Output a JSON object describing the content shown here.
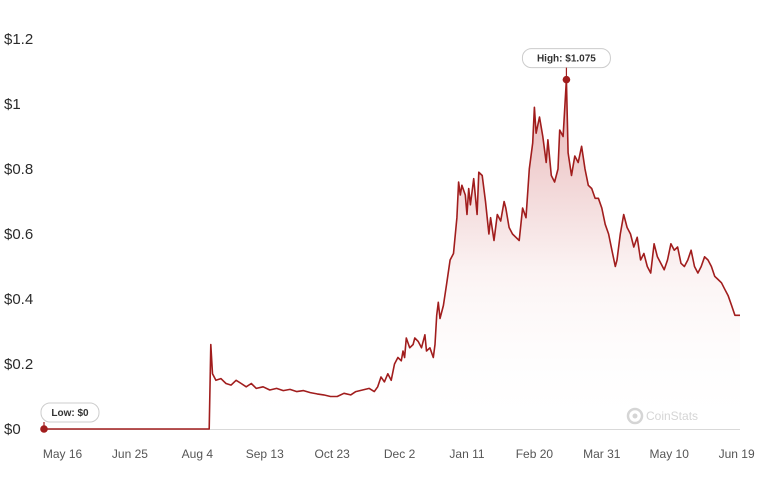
{
  "chart_data": {
    "type": "area",
    "title": "",
    "xlabel": "",
    "ylabel": "",
    "ylim": [
      0,
      1.2
    ],
    "y_ticks": [
      "$0",
      "$0.2",
      "$0.4",
      "$0.6",
      "$0.8",
      "$1",
      "$1.2"
    ],
    "y_tick_values": [
      0,
      0.2,
      0.4,
      0.6,
      0.8,
      1.0,
      1.2
    ],
    "x_range": [
      "2023-05-05",
      "2024-06-21"
    ],
    "x_ticks": [
      "May 16",
      "Jun 25",
      "Aug 4",
      "Sep 13",
      "Oct 23",
      "Dec 2",
      "Jan 11",
      "Feb 20",
      "Mar 31",
      "May 10",
      "Jun 19"
    ],
    "x_tick_dates": [
      "2023-05-16",
      "2023-06-25",
      "2023-08-04",
      "2023-09-13",
      "2023-10-23",
      "2023-12-02",
      "2024-01-11",
      "2024-02-20",
      "2024-03-31",
      "2024-05-10",
      "2024-06-19"
    ],
    "grid": false,
    "legend": "none",
    "colors": {
      "line": "#a11d1d",
      "fill_top": "#c0393b",
      "marker": "#a11d1d"
    },
    "annotations": {
      "high": {
        "label": "High: $1.075",
        "date": "2024-03-10",
        "value": 1.075
      },
      "low": {
        "label": "Low: $0",
        "date": "2023-05-05",
        "value": 0
      }
    },
    "series": [
      {
        "points": [
          [
            "2023-05-05",
            0.0
          ],
          [
            "2023-08-11",
            0.0
          ],
          [
            "2023-08-12",
            0.26
          ],
          [
            "2023-08-13",
            0.17
          ],
          [
            "2023-08-15",
            0.15
          ],
          [
            "2023-08-18",
            0.155
          ],
          [
            "2023-08-21",
            0.14
          ],
          [
            "2023-08-24",
            0.135
          ],
          [
            "2023-08-27",
            0.15
          ],
          [
            "2023-08-30",
            0.14
          ],
          [
            "2023-09-02",
            0.13
          ],
          [
            "2023-09-05",
            0.14
          ],
          [
            "2023-09-08",
            0.125
          ],
          [
            "2023-09-12",
            0.13
          ],
          [
            "2023-09-16",
            0.12
          ],
          [
            "2023-09-20",
            0.125
          ],
          [
            "2023-09-24",
            0.118
          ],
          [
            "2023-09-28",
            0.122
          ],
          [
            "2023-10-02",
            0.115
          ],
          [
            "2023-10-06",
            0.118
          ],
          [
            "2023-10-10",
            0.112
          ],
          [
            "2023-10-14",
            0.108
          ],
          [
            "2023-10-18",
            0.105
          ],
          [
            "2023-10-22",
            0.1
          ],
          [
            "2023-10-26",
            0.1
          ],
          [
            "2023-10-30",
            0.11
          ],
          [
            "2023-11-03",
            0.105
          ],
          [
            "2023-11-06",
            0.115
          ],
          [
            "2023-11-10",
            0.12
          ],
          [
            "2023-11-14",
            0.125
          ],
          [
            "2023-11-17",
            0.115
          ],
          [
            "2023-11-19",
            0.13
          ],
          [
            "2023-11-21",
            0.16
          ],
          [
            "2023-11-23",
            0.145
          ],
          [
            "2023-11-25",
            0.17
          ],
          [
            "2023-11-27",
            0.15
          ],
          [
            "2023-11-29",
            0.2
          ],
          [
            "2023-12-01",
            0.22
          ],
          [
            "2023-12-03",
            0.21
          ],
          [
            "2023-12-04",
            0.24
          ],
          [
            "2023-12-05",
            0.22
          ],
          [
            "2023-12-06",
            0.28
          ],
          [
            "2023-12-08",
            0.25
          ],
          [
            "2023-12-10",
            0.26
          ],
          [
            "2023-12-11",
            0.28
          ],
          [
            "2023-12-13",
            0.27
          ],
          [
            "2023-12-15",
            0.25
          ],
          [
            "2023-12-17",
            0.29
          ],
          [
            "2023-12-18",
            0.24
          ],
          [
            "2023-12-20",
            0.25
          ],
          [
            "2023-12-22",
            0.22
          ],
          [
            "2023-12-23",
            0.26
          ],
          [
            "2023-12-24",
            0.35
          ],
          [
            "2023-12-25",
            0.39
          ],
          [
            "2023-12-26",
            0.34
          ],
          [
            "2023-12-28",
            0.38
          ],
          [
            "2023-12-30",
            0.45
          ],
          [
            "2024-01-01",
            0.52
          ],
          [
            "2024-01-03",
            0.54
          ],
          [
            "2024-01-05",
            0.65
          ],
          [
            "2024-01-06",
            0.76
          ],
          [
            "2024-01-07",
            0.72
          ],
          [
            "2024-01-08",
            0.75
          ],
          [
            "2024-01-10",
            0.72
          ],
          [
            "2024-01-11",
            0.66
          ],
          [
            "2024-01-12",
            0.74
          ],
          [
            "2024-01-13",
            0.69
          ],
          [
            "2024-01-15",
            0.77
          ],
          [
            "2024-01-17",
            0.66
          ],
          [
            "2024-01-18",
            0.79
          ],
          [
            "2024-01-20",
            0.78
          ],
          [
            "2024-01-22",
            0.7
          ],
          [
            "2024-01-24",
            0.6
          ],
          [
            "2024-01-25",
            0.65
          ],
          [
            "2024-01-27",
            0.58
          ],
          [
            "2024-01-29",
            0.66
          ],
          [
            "2024-01-31",
            0.64
          ],
          [
            "2024-02-02",
            0.7
          ],
          [
            "2024-02-03",
            0.68
          ],
          [
            "2024-02-05",
            0.62
          ],
          [
            "2024-02-07",
            0.6
          ],
          [
            "2024-02-09",
            0.59
          ],
          [
            "2024-02-11",
            0.58
          ],
          [
            "2024-02-13",
            0.68
          ],
          [
            "2024-02-15",
            0.65
          ],
          [
            "2024-02-17",
            0.8
          ],
          [
            "2024-02-19",
            0.88
          ],
          [
            "2024-02-20",
            0.99
          ],
          [
            "2024-02-21",
            0.91
          ],
          [
            "2024-02-23",
            0.96
          ],
          [
            "2024-02-25",
            0.9
          ],
          [
            "2024-02-27",
            0.82
          ],
          [
            "2024-02-28",
            0.89
          ],
          [
            "2024-03-01",
            0.78
          ],
          [
            "2024-03-03",
            0.76
          ],
          [
            "2024-03-05",
            0.8
          ],
          [
            "2024-03-06",
            0.92
          ],
          [
            "2024-03-08",
            0.9
          ],
          [
            "2024-03-10",
            1.075
          ],
          [
            "2024-03-11",
            0.85
          ],
          [
            "2024-03-13",
            0.78
          ],
          [
            "2024-03-15",
            0.84
          ],
          [
            "2024-03-17",
            0.82
          ],
          [
            "2024-03-19",
            0.87
          ],
          [
            "2024-03-21",
            0.8
          ],
          [
            "2024-03-23",
            0.75
          ],
          [
            "2024-03-25",
            0.74
          ],
          [
            "2024-03-27",
            0.71
          ],
          [
            "2024-03-29",
            0.71
          ],
          [
            "2024-03-31",
            0.68
          ],
          [
            "2024-04-02",
            0.63
          ],
          [
            "2024-04-04",
            0.6
          ],
          [
            "2024-04-06",
            0.55
          ],
          [
            "2024-04-08",
            0.5
          ],
          [
            "2024-04-09",
            0.52
          ],
          [
            "2024-04-11",
            0.6
          ],
          [
            "2024-04-13",
            0.66
          ],
          [
            "2024-04-15",
            0.62
          ],
          [
            "2024-04-17",
            0.6
          ],
          [
            "2024-04-19",
            0.56
          ],
          [
            "2024-04-21",
            0.59
          ],
          [
            "2024-04-23",
            0.52
          ],
          [
            "2024-04-25",
            0.54
          ],
          [
            "2024-04-27",
            0.5
          ],
          [
            "2024-04-29",
            0.48
          ],
          [
            "2024-05-01",
            0.57
          ],
          [
            "2024-05-03",
            0.53
          ],
          [
            "2024-05-05",
            0.51
          ],
          [
            "2024-05-07",
            0.49
          ],
          [
            "2024-05-09",
            0.52
          ],
          [
            "2024-05-11",
            0.57
          ],
          [
            "2024-05-13",
            0.55
          ],
          [
            "2024-05-15",
            0.56
          ],
          [
            "2024-05-17",
            0.51
          ],
          [
            "2024-05-19",
            0.5
          ],
          [
            "2024-05-21",
            0.52
          ],
          [
            "2024-05-23",
            0.55
          ],
          [
            "2024-05-25",
            0.5
          ],
          [
            "2024-05-27",
            0.48
          ],
          [
            "2024-05-29",
            0.5
          ],
          [
            "2024-05-31",
            0.53
          ],
          [
            "2024-06-02",
            0.52
          ],
          [
            "2024-06-04",
            0.5
          ],
          [
            "2024-06-06",
            0.47
          ],
          [
            "2024-06-08",
            0.46
          ],
          [
            "2024-06-10",
            0.45
          ],
          [
            "2024-06-12",
            0.43
          ],
          [
            "2024-06-14",
            0.41
          ],
          [
            "2024-06-16",
            0.38
          ],
          [
            "2024-06-18",
            0.35
          ],
          [
            "2024-06-21",
            0.35
          ]
        ]
      }
    ]
  },
  "watermark": {
    "label": "CoinStats",
    "icon": "coinstats-logo-icon"
  }
}
